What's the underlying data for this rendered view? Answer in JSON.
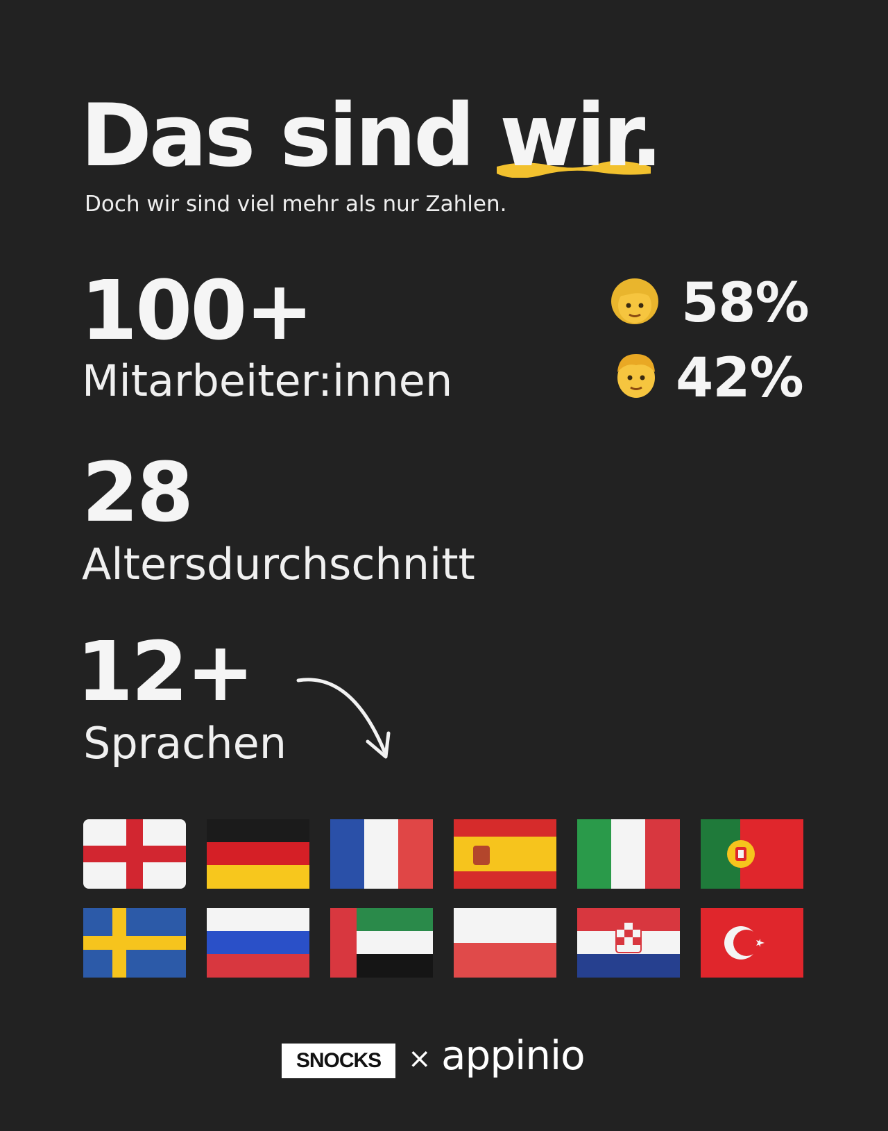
{
  "header": {
    "title_lead": "Das sind",
    "title_highlight": "wir.",
    "subtitle": "Doch wir sind viel mehr als nur Zahlen.",
    "highlight_color": "#f2c12e"
  },
  "stats": {
    "employees": {
      "value": "100+",
      "label": "Mitarbeiter:innen"
    },
    "age": {
      "value": "28",
      "label": "Altersdurchschnitt"
    },
    "languages": {
      "value": "12+",
      "label": "Sprachen"
    }
  },
  "gender": {
    "female": {
      "icon": "woman-emoji-icon",
      "value": "58%"
    },
    "male": {
      "icon": "man-emoji-icon",
      "value": "42%"
    }
  },
  "flags": [
    "flag-england-icon",
    "flag-germany-icon",
    "flag-france-icon",
    "flag-spain-icon",
    "flag-italy-icon",
    "flag-portugal-icon",
    "flag-sweden-icon",
    "flag-russia-icon",
    "flag-uae-icon",
    "flag-poland-icon",
    "flag-croatia-icon",
    "flag-turkey-icon"
  ],
  "footer": {
    "brand_left": "SNOCKS",
    "separator": "×",
    "brand_right": "appinio"
  }
}
